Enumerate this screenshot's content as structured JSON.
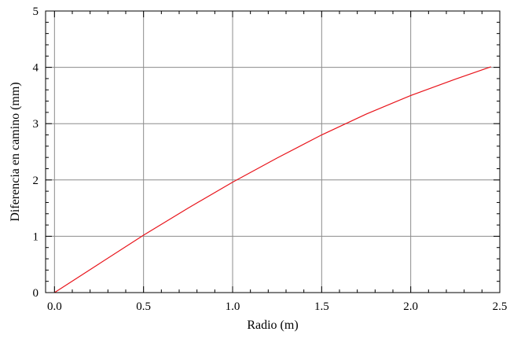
{
  "chart_data": {
    "type": "line",
    "title": "",
    "xlabel": "Radio (m)",
    "ylabel": "Diferencia en camino (mm)",
    "xlim": [
      -0.05,
      2.5
    ],
    "ylim": [
      0,
      5
    ],
    "x_ticks": [
      "0.0",
      "0.5",
      "1.0",
      "1.5",
      "2.0",
      "2.5"
    ],
    "x_tick_values": [
      0.0,
      0.5,
      1.0,
      1.5,
      2.0,
      2.5
    ],
    "y_ticks": [
      "0",
      "1",
      "2",
      "3",
      "4",
      "5"
    ],
    "y_tick_values": [
      0,
      1,
      2,
      3,
      4,
      5
    ],
    "grid": true,
    "series": [
      {
        "color": "#e8141b",
        "x": [
          0.0,
          0.25,
          0.5,
          0.75,
          1.0,
          1.25,
          1.5,
          1.75,
          2.0,
          2.25,
          2.45
        ],
        "y": [
          0.0,
          0.51,
          1.02,
          1.5,
          1.96,
          2.39,
          2.8,
          3.17,
          3.5,
          3.79,
          4.01
        ]
      }
    ]
  }
}
